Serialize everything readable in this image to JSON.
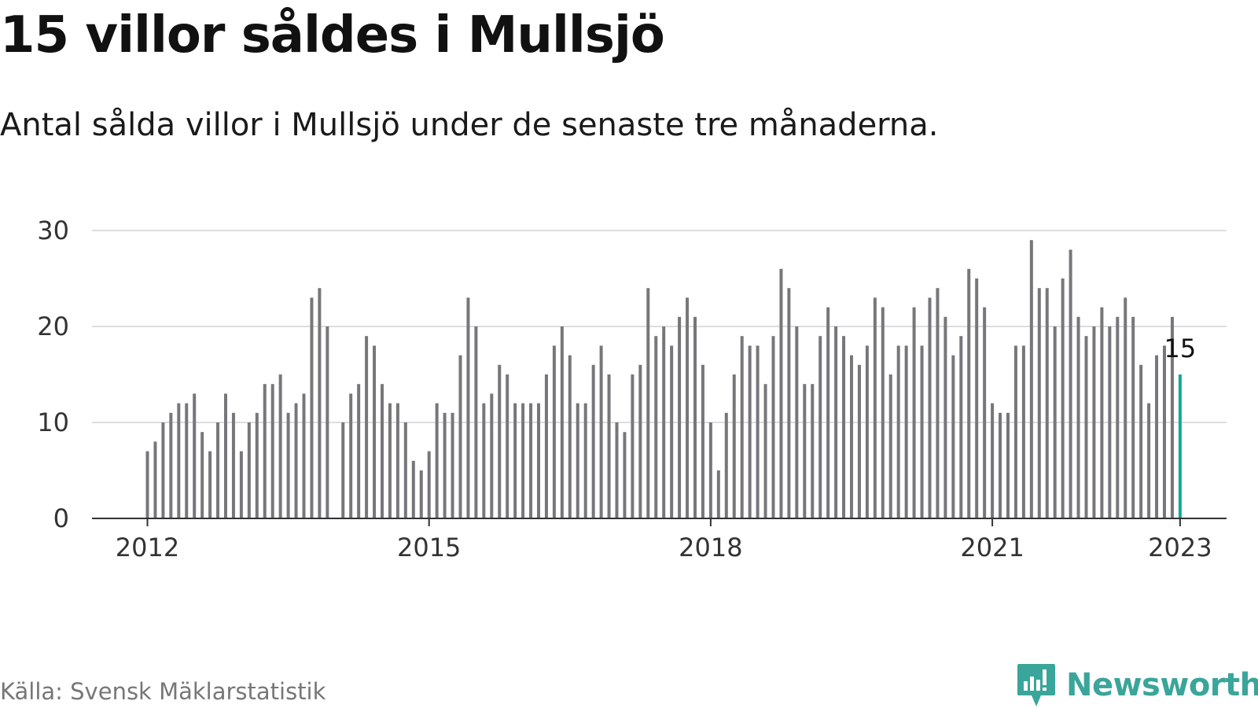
{
  "title": "15 villor såldes i Mullsjö",
  "subtitle": "Antal sålda villor i Mullsjö under de senaste tre månaderna.",
  "source": "Källa: Svensk Mäklarstatistik",
  "brand": {
    "name": "Newsworthy",
    "color": "#3aa59a",
    "icon": "bar-chart-logo-icon"
  },
  "colors": {
    "bar": "#77767b",
    "highlight": "#12a89d",
    "grid": "#dddddd",
    "axis": "#333333"
  },
  "chart_data": {
    "type": "bar",
    "x_unit": "month",
    "x_start": "2012-01",
    "values": [
      7,
      8,
      10,
      11,
      12,
      12,
      13,
      9,
      7,
      10,
      13,
      11,
      7,
      10,
      11,
      14,
      14,
      15,
      11,
      12,
      13,
      23,
      24,
      20,
      null,
      10,
      13,
      14,
      19,
      18,
      14,
      12,
      12,
      10,
      6,
      5,
      7,
      12,
      11,
      11,
      17,
      23,
      20,
      12,
      13,
      16,
      15,
      12,
      12,
      12,
      12,
      15,
      18,
      20,
      17,
      12,
      12,
      16,
      18,
      15,
      10,
      9,
      15,
      16,
      24,
      19,
      20,
      18,
      21,
      23,
      21,
      16,
      10,
      5,
      11,
      15,
      19,
      18,
      18,
      14,
      19,
      26,
      24,
      20,
      14,
      14,
      19,
      22,
      20,
      19,
      17,
      16,
      18,
      23,
      22,
      15,
      18,
      18,
      22,
      18,
      23,
      24,
      21,
      17,
      19,
      26,
      25,
      22,
      12,
      11,
      11,
      18,
      18,
      29,
      24,
      24,
      20,
      25,
      28,
      21,
      19,
      20,
      22,
      20,
      21,
      23,
      21,
      16,
      12,
      17,
      18,
      21,
      15
    ],
    "highlight_index": 132,
    "highlight_label": "15",
    "x_ticks": [
      {
        "label": "2012",
        "index": 0
      },
      {
        "label": "2015",
        "index": 36
      },
      {
        "label": "2018",
        "index": 72
      },
      {
        "label": "2021",
        "index": 108
      },
      {
        "label": "2023",
        "index": 132
      }
    ],
    "y_ticks": [
      0,
      10,
      20,
      30
    ],
    "ylim": [
      0,
      30
    ],
    "grid": true,
    "title": "15 villor såldes i Mullsjö",
    "subtitle": "Antal sålda villor i Mullsjö under de senaste tre månaderna.",
    "xlabel": "",
    "ylabel": ""
  }
}
